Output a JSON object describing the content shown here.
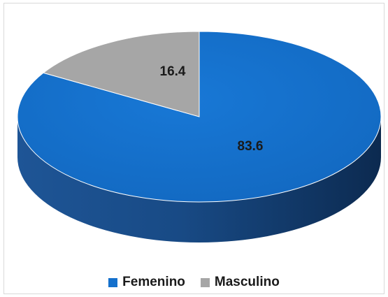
{
  "chart_data": {
    "type": "pie",
    "style": "3d",
    "categories": [
      "Femenino",
      "Masculino"
    ],
    "values": [
      83.6,
      16.4
    ],
    "colors": [
      "#1470cc",
      "#a6a6a6"
    ],
    "data_labels": [
      "83.6",
      "16.4"
    ],
    "legend_position": "bottom"
  },
  "legend": {
    "items": [
      {
        "label": "Femenino",
        "color": "#1470cc"
      },
      {
        "label": "Masculino",
        "color": "#a6a6a6"
      }
    ]
  }
}
